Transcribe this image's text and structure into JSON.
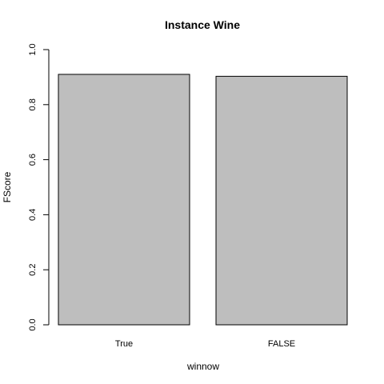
{
  "chart_data": {
    "type": "bar",
    "title": "Instance Wine",
    "xlabel": "winnow",
    "ylabel": "FScore",
    "categories": [
      "True",
      "FALSE"
    ],
    "values": [
      0.91,
      0.903
    ],
    "ylim": [
      0,
      1
    ],
    "yticks": [
      "0.0",
      "0.2",
      "0.4",
      "0.6",
      "0.8",
      "1.0"
    ],
    "bar_color": "#bebebe",
    "grid": false,
    "legend": "none"
  }
}
